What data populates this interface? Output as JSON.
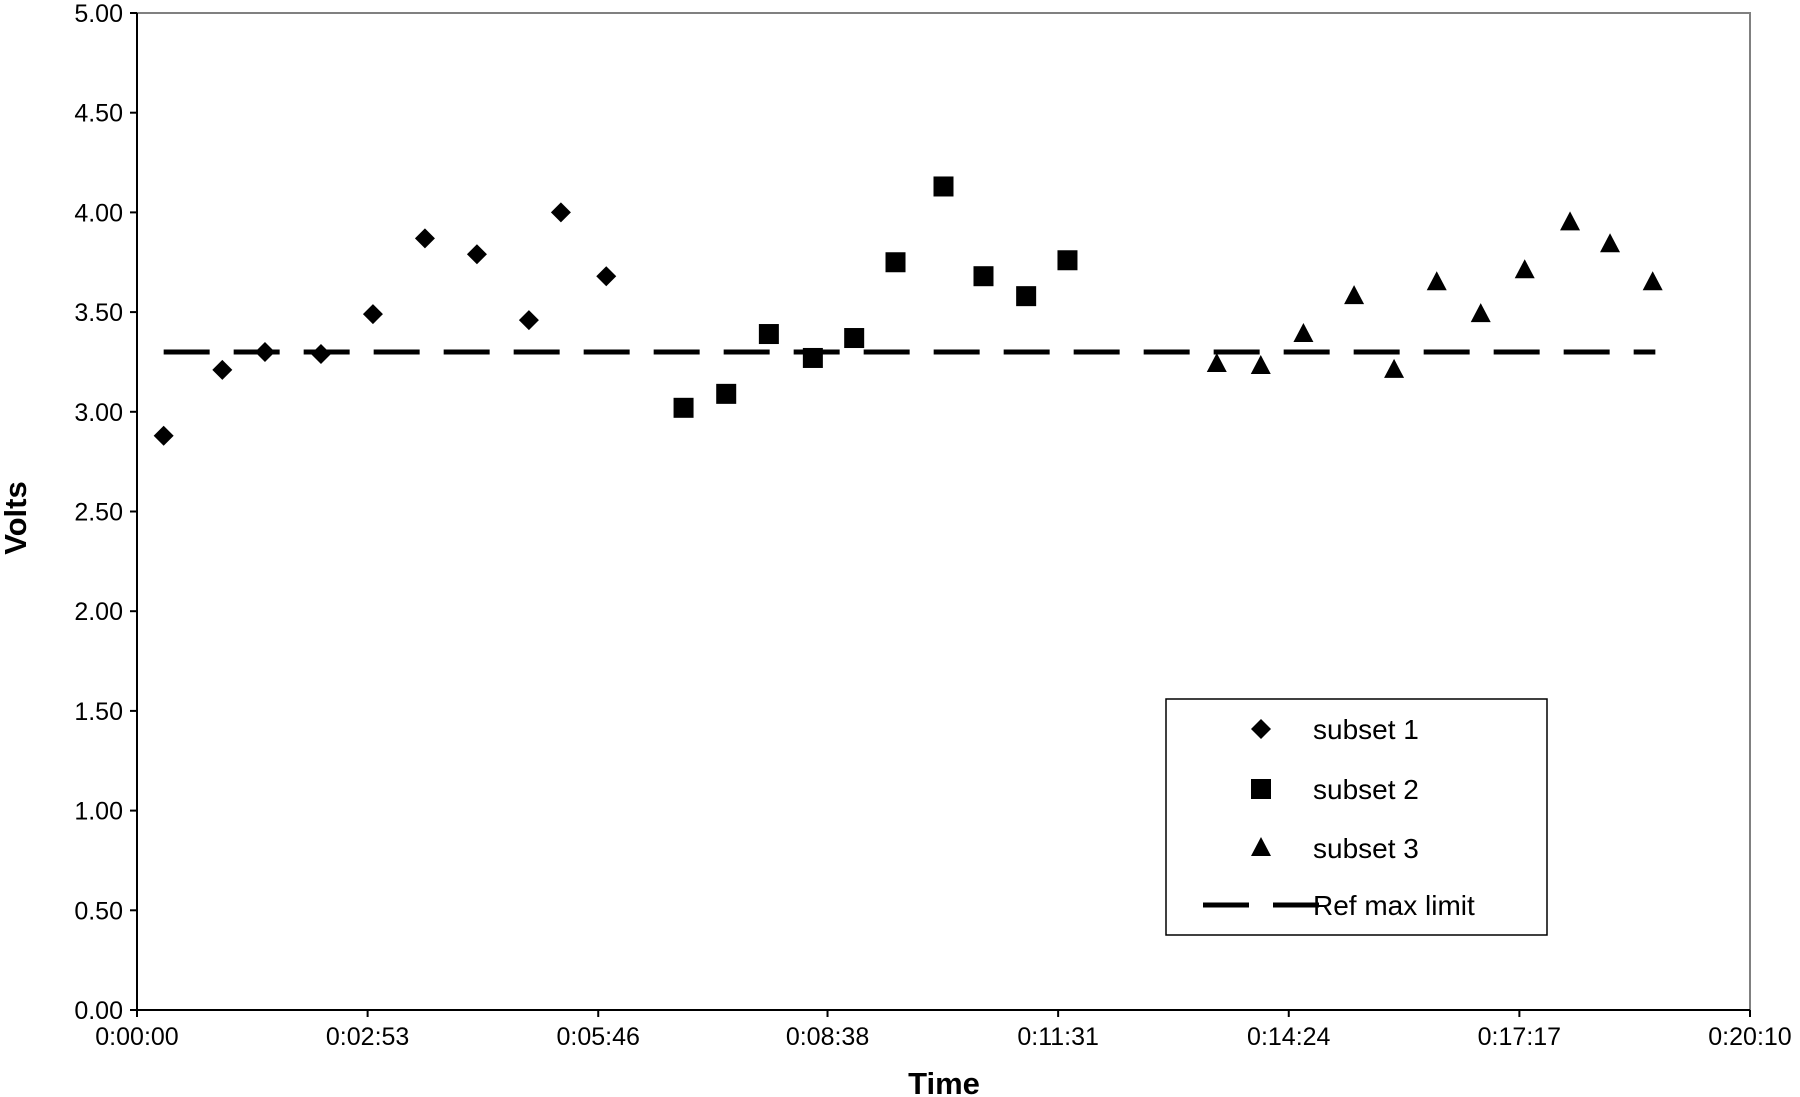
{
  "chart_data": {
    "type": "scatter",
    "title": "",
    "xlabel": "Time",
    "ylabel": "Volts",
    "xlim": [
      "0:00:00",
      "0:20:10"
    ],
    "ylim": [
      0,
      5
    ],
    "y_ticks": [
      "0.00",
      "0.50",
      "1.00",
      "1.50",
      "2.00",
      "2.50",
      "3.00",
      "3.50",
      "4.00",
      "4.50",
      "5.00"
    ],
    "x_ticks": [
      "0:00:00",
      "0:02:53",
      "0:05:46",
      "0:08:38",
      "0:11:31",
      "0:14:24",
      "0:17:17",
      "0:20:10"
    ],
    "grid": false,
    "legend_position": "bottom-right",
    "series": [
      {
        "name": "subset 1",
        "marker": "diamond",
        "color": "#000000",
        "x": [
          "0:00:20",
          "0:01:04",
          "0:01:36",
          "0:02:18",
          "0:02:57",
          "0:03:36",
          "0:04:15",
          "0:04:54",
          "0:05:18",
          "0:05:52"
        ],
        "y": [
          2.88,
          3.21,
          3.3,
          3.29,
          3.49,
          3.87,
          3.79,
          3.46,
          4.0,
          3.68
        ]
      },
      {
        "name": "subset 2",
        "marker": "square",
        "color": "#000000",
        "x": [
          "0:06:50",
          "0:07:22",
          "0:07:54",
          "0:08:27",
          "0:08:58",
          "0:09:29",
          "0:10:05",
          "0:10:35",
          "0:11:07",
          "0:11:38"
        ],
        "y": [
          3.02,
          3.09,
          3.39,
          3.27,
          3.37,
          3.75,
          4.13,
          3.68,
          3.58,
          3.76
        ]
      },
      {
        "name": "subset 3",
        "marker": "triangle",
        "color": "#000000",
        "x": [
          "0:13:30",
          "0:14:03",
          "0:14:35",
          "0:15:13",
          "0:15:43",
          "0:16:15",
          "0:16:48",
          "0:17:21",
          "0:17:55",
          "0:18:25",
          "0:18:57"
        ],
        "y": [
          3.24,
          3.23,
          3.39,
          3.58,
          3.21,
          3.65,
          3.49,
          3.71,
          3.95,
          3.84,
          3.65
        ]
      },
      {
        "name": "Ref max limit",
        "type": "line",
        "style": "dashed",
        "color": "#000000",
        "x": [
          "0:00:20",
          "0:18:59"
        ],
        "y": [
          3.3,
          3.3
        ]
      }
    ]
  }
}
